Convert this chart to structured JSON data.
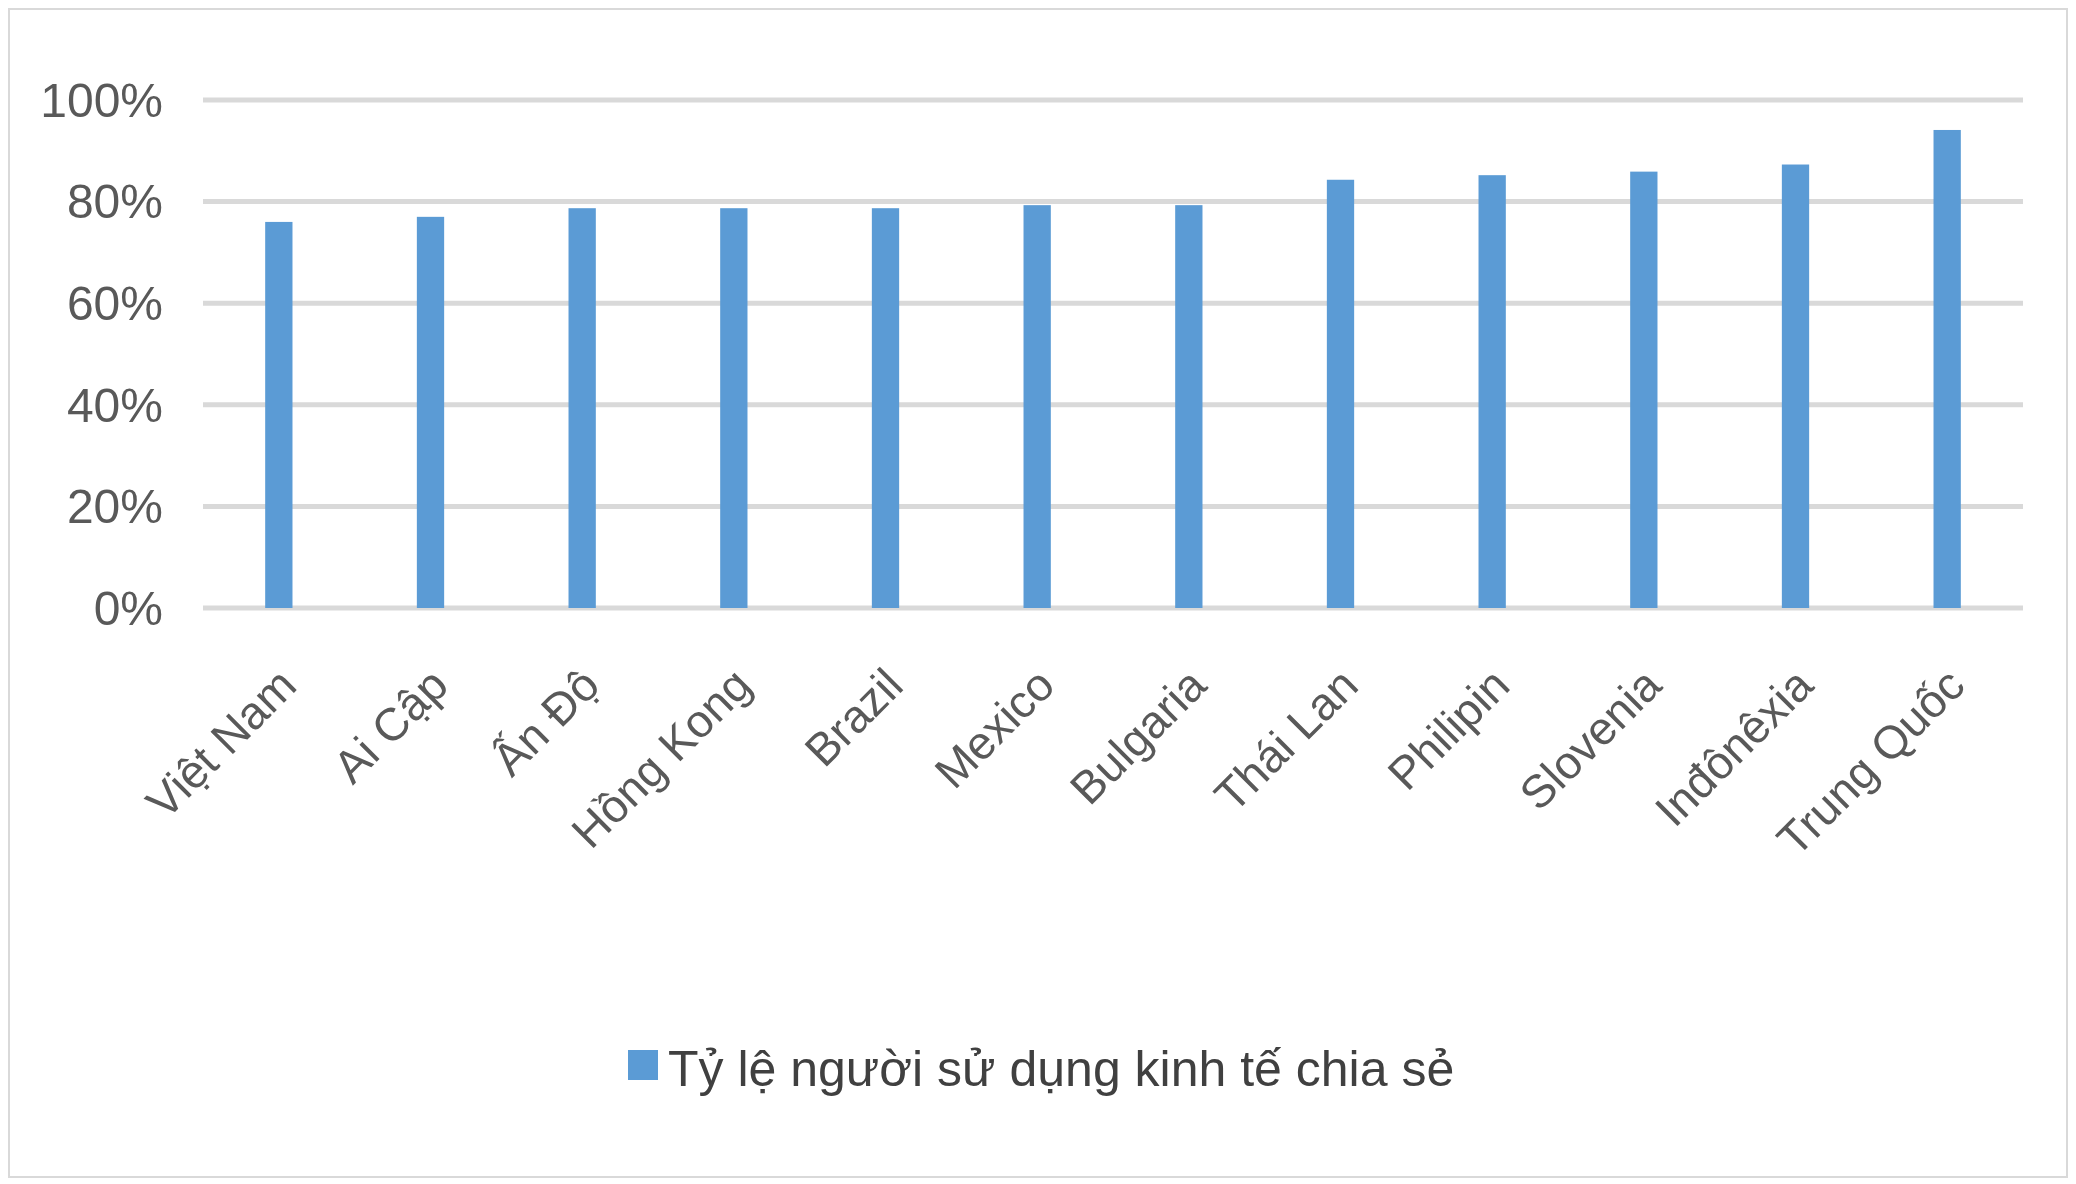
{
  "chart_data": {
    "type": "bar",
    "categories": [
      "Việt Nam",
      "Ai Cập",
      "Ấn Độ",
      "Hồng Kong",
      "Brazil",
      "Mexico",
      "Bulgaria",
      "Thái Lan",
      "Philipin",
      "Slovenia",
      "Inđônêxia",
      "Trung Quốc"
    ],
    "series": [
      {
        "name": "Tỷ lệ người sử dụng kinh tế chia sẻ",
        "color": "#5b9bd5",
        "values": [
          76,
          77,
          78.7,
          78.7,
          78.7,
          79.3,
          79.3,
          84.3,
          85.2,
          85.9,
          87.3,
          94.1
        ]
      }
    ],
    "ylim": [
      0,
      100
    ],
    "yticks": [
      {
        "value": 0,
        "label": "0%"
      },
      {
        "value": 20,
        "label": "20%"
      },
      {
        "value": 40,
        "label": "40%"
      },
      {
        "value": 60,
        "label": "60%"
      },
      {
        "value": 80,
        "label": "80%"
      },
      {
        "value": 100,
        "label": "100%"
      }
    ],
    "grid": "y",
    "legend": "bottom"
  }
}
